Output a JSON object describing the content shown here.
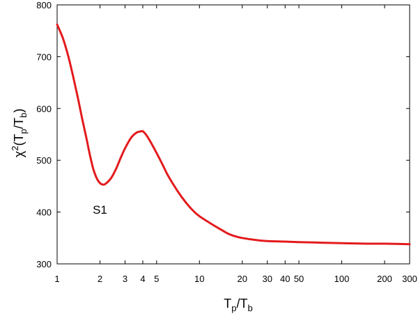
{
  "chart_data": {
    "type": "line",
    "title": "",
    "xscale": "log",
    "xlim": [
      1,
      300
    ],
    "ylim": [
      300,
      800
    ],
    "xticks": [
      1,
      2,
      3,
      4,
      5,
      10,
      20,
      30,
      40,
      50,
      100,
      200,
      300
    ],
    "xtick_labels": [
      "1",
      "2",
      "3",
      "4",
      "5",
      "10",
      "20",
      "30",
      "40",
      "50",
      "100",
      "200",
      "300"
    ],
    "yticks": [
      300,
      400,
      500,
      600,
      700,
      800
    ],
    "ytick_labels": [
      "300",
      "400",
      "500",
      "600",
      "700",
      "800"
    ],
    "xlabel": {
      "main": "T",
      "sub1": "p",
      "mid": "/T",
      "sub2": "b"
    },
    "ylabel": {
      "pre": "χ",
      "sup": "2",
      "open": "(T",
      "sub1": "p",
      "mid": "/T",
      "sub2": "b",
      "close": ")"
    },
    "annotations": [
      {
        "text": "S1",
        "x": 2.0,
        "y": 405
      }
    ],
    "grid": false,
    "legend": "none",
    "line_color": "#e31a1c",
    "series": [
      {
        "color": "#e31a1c",
        "x": [
          1.0,
          1.1,
          1.2,
          1.3,
          1.4,
          1.5,
          1.6,
          1.7,
          1.8,
          1.9,
          2.0,
          2.1,
          2.2,
          2.4,
          2.6,
          2.8,
          3.0,
          3.3,
          3.6,
          3.9,
          4.0,
          4.2,
          4.5,
          5.0,
          5.5,
          6.0,
          7.0,
          8.0,
          9.0,
          10,
          12,
          14,
          16,
          18,
          20,
          25,
          30,
          40,
          50,
          70,
          100,
          150,
          200,
          300
        ],
        "y": [
          762,
          735,
          700,
          660,
          620,
          580,
          545,
          510,
          482,
          465,
          456,
          453,
          455,
          466,
          484,
          505,
          523,
          543,
          553,
          556,
          556,
          550,
          537,
          514,
          492,
          471,
          441,
          419,
          403,
          392,
          378,
          367,
          358,
          353,
          350,
          346,
          344,
          343,
          342,
          341,
          340,
          339,
          339,
          338
        ]
      }
    ]
  }
}
